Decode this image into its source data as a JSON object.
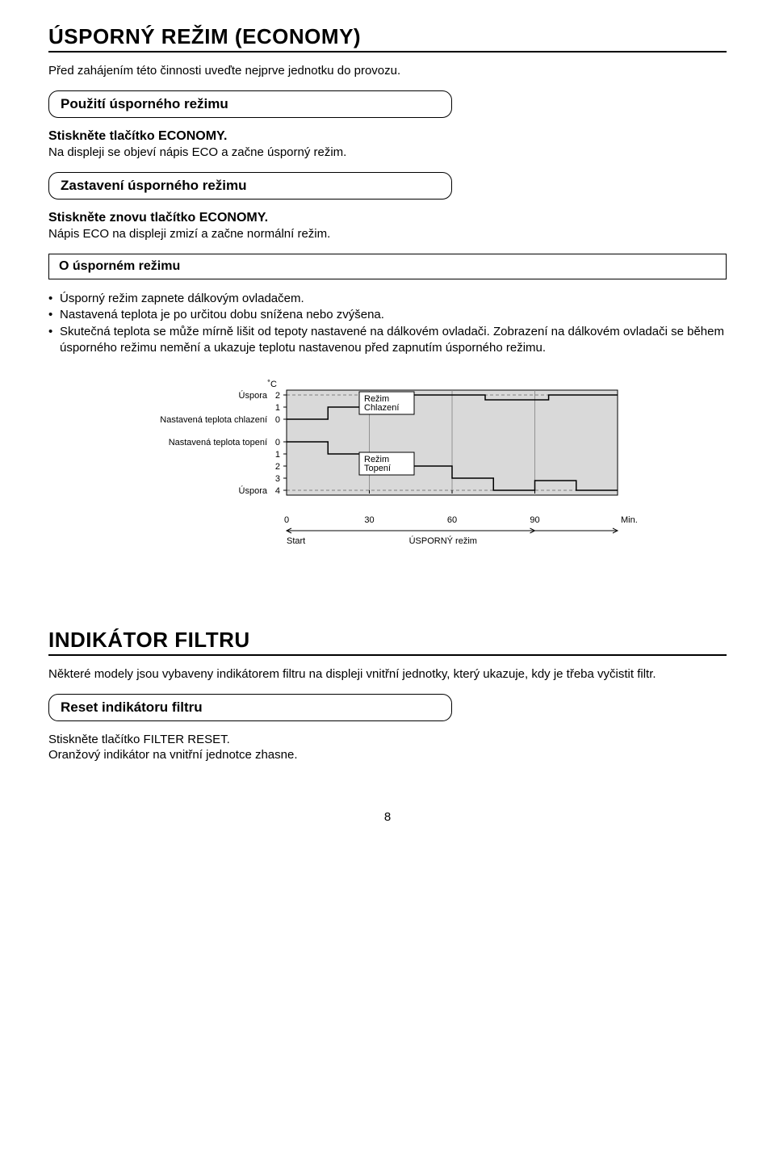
{
  "section_economy": {
    "heading": "ÚSPORNÝ REŽIM (ECONOMY)",
    "intro": "Před zahájením této činnosti uveďte nejprve jednotku do provozu.",
    "box1_title": "Použití úsporného režimu",
    "step1_bold": "Stiskněte tlačítko ECONOMY.",
    "step1_text": "Na displeji se objeví nápis ECO a začne úsporný režim.",
    "box2_title": "Zastavení úsporného režimu",
    "step2_bold": "Stiskněte znovu tlačítko ECONOMY.",
    "step2_text": "Nápis ECO na displeji zmizí a začne normální režim.",
    "info_title": "O úsporném režimu",
    "bullets": {
      "b1": "Úsporný režim zapnete dálkovým ovladačem.",
      "b2": "Nastavená teplota je po určitou dobu snížena nebo zvýšena.",
      "b3": "Skutečná teplota se může mírně lišit od tepoty nastavené na dálkovém ovladači. Zobrazení na dálkovém ovladači se během úsporného režimu nemění a ukazuje teplotu nastavenou před zapnutím úsporného režimu."
    }
  },
  "chart": {
    "type": "step-line",
    "background_color": "#d9d9d9",
    "grid_color": "#808080",
    "line_color": "#000000",
    "line_width": 1.5,
    "unit_label": "˚C",
    "y_labels_left": {
      "uspora_top": "Úspora",
      "cool_set": "Nastavená teplota chlazení",
      "heat_set": "Nastavená teplota topení",
      "uspora_bot": "Úspora"
    },
    "y_ticks_cool": [
      "2",
      "1",
      "0"
    ],
    "y_ticks_heat": [
      "0",
      "1",
      "2",
      "3",
      "4"
    ],
    "x_ticks": [
      "0",
      "30",
      "60",
      "90"
    ],
    "x_unit": "Min.",
    "start_label": "Start",
    "mode_label": "ÚSPORNÝ režim",
    "box_cool": {
      "l1": "Režim",
      "l2": "Chlazení"
    },
    "box_heat": {
      "l1": "Režim",
      "l2": "Topení"
    },
    "cool_series": [
      {
        "x": 0,
        "y": 0
      },
      {
        "x": 15,
        "y": 0
      },
      {
        "x": 15,
        "y": 1
      },
      {
        "x": 45,
        "y": 1
      },
      {
        "x": 45,
        "y": 2
      },
      {
        "x": 72,
        "y": 2
      },
      {
        "x": 72,
        "y": 1.6
      },
      {
        "x": 95,
        "y": 1.6
      },
      {
        "x": 95,
        "y": 2
      },
      {
        "x": 120,
        "y": 2
      }
    ],
    "heat_series": [
      {
        "x": 0,
        "y": 0
      },
      {
        "x": 15,
        "y": 0
      },
      {
        "x": 15,
        "y": 1
      },
      {
        "x": 30,
        "y": 1
      },
      {
        "x": 30,
        "y": 2
      },
      {
        "x": 60,
        "y": 2
      },
      {
        "x": 60,
        "y": 3
      },
      {
        "x": 75,
        "y": 3
      },
      {
        "x": 75,
        "y": 4
      },
      {
        "x": 90,
        "y": 4
      },
      {
        "x": 90,
        "y": 3.2
      },
      {
        "x": 105,
        "y": 3.2
      },
      {
        "x": 105,
        "y": 4
      },
      {
        "x": 120,
        "y": 4
      }
    ],
    "plot_xlim": [
      0,
      120
    ],
    "chart_fontsize": 11
  },
  "section_filter": {
    "heading": "INDIKÁTOR FILTRU",
    "intro": "Některé modely jsou vybaveny indikátorem filtru na displeji vnitřní jednotky, který ukazuje, kdy je třeba vyčistit filtr.",
    "box_title": "Reset indikátoru filtru",
    "line1": "Stiskněte tlačítko FILTER RESET.",
    "line2": "Oranžový indikátor na vnitřní jednotce zhasne."
  },
  "page_number": "8"
}
